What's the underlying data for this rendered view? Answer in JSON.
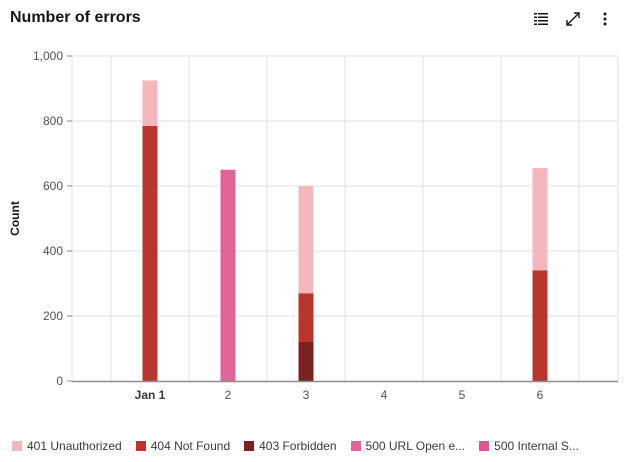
{
  "header": {
    "title": "Number of errors"
  },
  "toolbar": {
    "icons": [
      "table-view-icon",
      "maximize-icon",
      "overflow-menu-icon"
    ]
  },
  "colors": {
    "401 Unauthorized": "#f4b8bc",
    "404 Not Found": "#b8362d",
    "403 Forbidden": "#7c2020",
    "500 URL Open e...": "#e06496",
    "500 Internal S...": "#d8588f",
    "grid": "#e0e0e0",
    "axis": "#8d8d8d"
  },
  "legend": {
    "items": [
      {
        "label": "401 Unauthorized",
        "color": "#f4b8bc"
      },
      {
        "label": "404 Not Found",
        "color": "#b8362d"
      },
      {
        "label": "403 Forbidden",
        "color": "#7c2020"
      },
      {
        "label": "500 URL Open e...",
        "color": "#e06496"
      },
      {
        "label": "500 Internal S...",
        "color": "#d8588f"
      }
    ]
  },
  "chart_data": {
    "type": "bar",
    "stacked": true,
    "title": "Number of errors",
    "xlabel": "",
    "ylabel": "Count",
    "ylim": [
      0,
      1000
    ],
    "yticks": [
      0,
      200,
      400,
      600,
      800,
      1000
    ],
    "ytick_labels": [
      "0",
      "200",
      "400",
      "600",
      "800",
      "1,000"
    ],
    "categories": [
      "Jan 1",
      "2",
      "3",
      "4",
      "5",
      "6"
    ],
    "grid": true,
    "legend_position": "bottom",
    "series": [
      {
        "name": "401 Unauthorized",
        "values": [
          140,
          0,
          330,
          0,
          0,
          315
        ]
      },
      {
        "name": "404 Not Found",
        "values": [
          785,
          0,
          150,
          0,
          0,
          340
        ]
      },
      {
        "name": "403 Forbidden",
        "values": [
          0,
          0,
          120,
          0,
          0,
          0
        ]
      },
      {
        "name": "500 URL Open e...",
        "values": [
          0,
          650,
          0,
          0,
          0,
          0
        ]
      },
      {
        "name": "500 Internal S...",
        "values": [
          0,
          0,
          0,
          0,
          0,
          0
        ]
      }
    ],
    "stack_order": [
      "403 Forbidden",
      "404 Not Found",
      "401 Unauthorized",
      "500 URL Open e...",
      "500 Internal S..."
    ]
  }
}
